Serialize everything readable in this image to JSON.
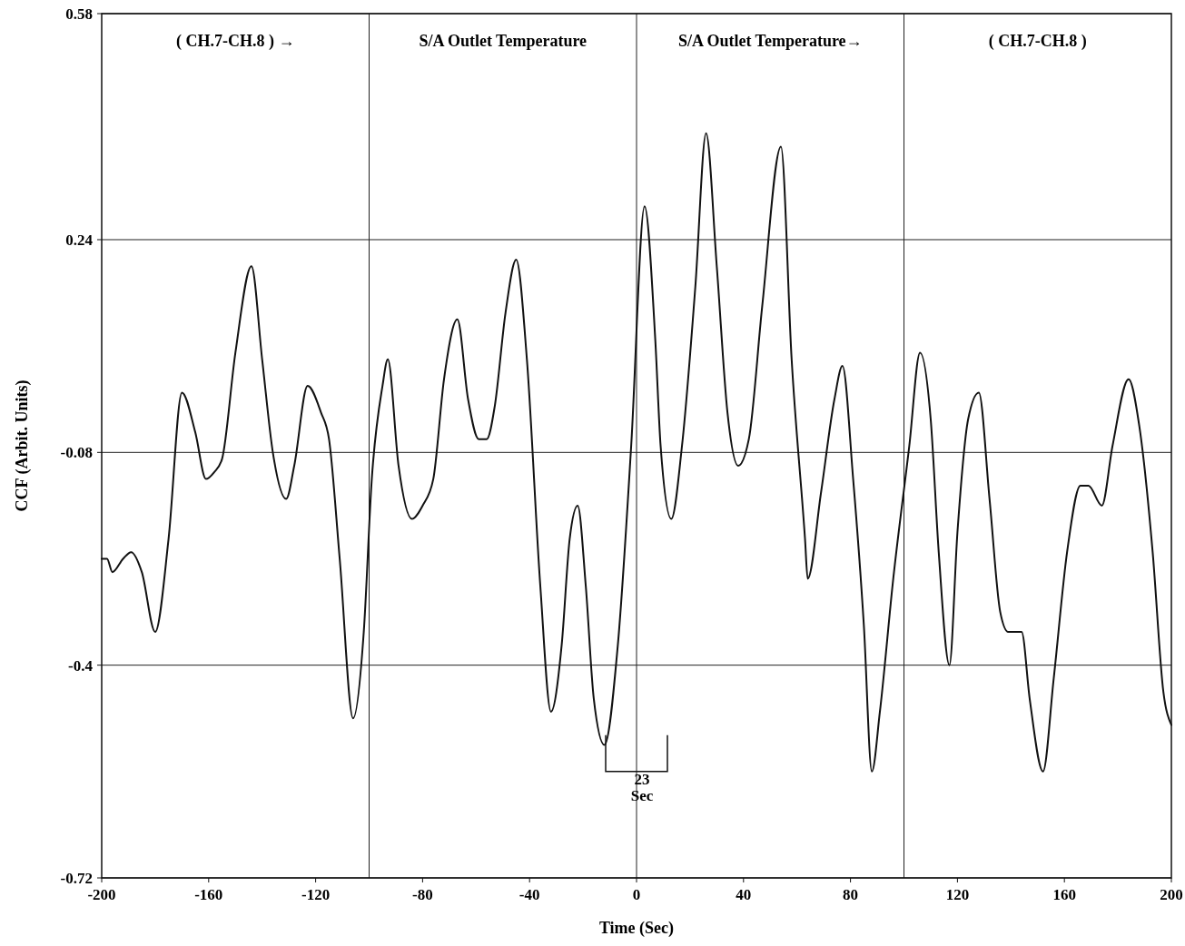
{
  "chart_data": {
    "type": "line",
    "xlabel": "Time (Sec)",
    "ylabel": "CCF (Arbit. Units)",
    "x": [
      -200,
      -198,
      -196,
      -192,
      -189,
      -185,
      -180,
      -175,
      -170,
      -165,
      -161,
      -158,
      -155,
      -150,
      -144,
      -140,
      -136,
      -131,
      -128,
      -123,
      -118,
      -115,
      -111,
      -106,
      -102,
      -99,
      -95,
      -93,
      -89,
      -84,
      -80,
      -76,
      -72,
      -67,
      -63,
      -59,
      -56,
      -53,
      -49,
      -45,
      -41,
      -36,
      -32,
      -28,
      -25,
      -22,
      -19,
      -16,
      -12,
      -7,
      -2,
      3,
      7,
      9,
      13,
      17,
      22,
      26,
      30,
      34,
      38,
      42,
      47,
      54,
      58,
      63,
      64,
      69,
      74,
      77,
      81,
      85,
      88,
      91,
      96,
      102,
      106,
      110,
      113,
      117,
      120,
      124,
      128,
      132,
      136,
      139,
      144,
      147,
      152,
      156,
      161,
      166,
      169,
      174,
      178,
      184,
      188,
      193,
      197,
      200
    ],
    "series": [
      {
        "color": "#111111",
        "values": [
          -0.24,
          -0.24,
          -0.26,
          -0.24,
          -0.23,
          -0.26,
          -0.35,
          -0.21,
          0.01,
          -0.05,
          -0.12,
          -0.11,
          -0.09,
          0.07,
          0.2,
          0.06,
          -0.08,
          -0.15,
          -0.1,
          0.02,
          -0.02,
          -0.06,
          -0.24,
          -0.48,
          -0.35,
          -0.12,
          0.02,
          0.06,
          -0.1,
          -0.18,
          -0.16,
          -0.12,
          0.03,
          0.12,
          0.0,
          -0.06,
          -0.06,
          -0.01,
          0.13,
          0.21,
          0.06,
          -0.28,
          -0.47,
          -0.37,
          -0.21,
          -0.16,
          -0.28,
          -0.45,
          -0.52,
          -0.37,
          -0.07,
          0.29,
          0.09,
          -0.07,
          -0.18,
          -0.07,
          0.17,
          0.4,
          0.2,
          -0.02,
          -0.1,
          -0.06,
          0.14,
          0.38,
          0.06,
          -0.21,
          -0.27,
          -0.14,
          0.0,
          0.05,
          -0.12,
          -0.34,
          -0.56,
          -0.47,
          -0.27,
          -0.07,
          0.07,
          -0.03,
          -0.23,
          -0.4,
          -0.2,
          -0.03,
          0.01,
          -0.15,
          -0.32,
          -0.35,
          -0.35,
          -0.45,
          -0.56,
          -0.42,
          -0.23,
          -0.13,
          -0.13,
          -0.16,
          -0.07,
          0.03,
          -0.04,
          -0.23,
          -0.44,
          -0.49
        ]
      }
    ],
    "xlim": [
      -200,
      200
    ],
    "xticks": [
      -200,
      -160,
      -120,
      -80,
      -40,
      0,
      40,
      80,
      120,
      160,
      200
    ],
    "ylim": [
      -0.72,
      0.58
    ],
    "yticks": [
      -0.72,
      -0.4,
      -0.08,
      0.24,
      0.58
    ],
    "grid": "y",
    "line_style": "solid",
    "marker": "none",
    "ref_lines": [
      {
        "axis": "x",
        "value": -100
      },
      {
        "axis": "x",
        "value": 0
      },
      {
        "axis": "x",
        "value": 100
      }
    ],
    "annotations": [
      "( CH.7-CH.8 ) →",
      "S/A Outlet Temperature",
      "S/A Outlet Temperature→",
      "( CH.7-CH.8 )",
      {
        "text": "23 Sec",
        "x": 0,
        "y": -0.56
      }
    ]
  }
}
